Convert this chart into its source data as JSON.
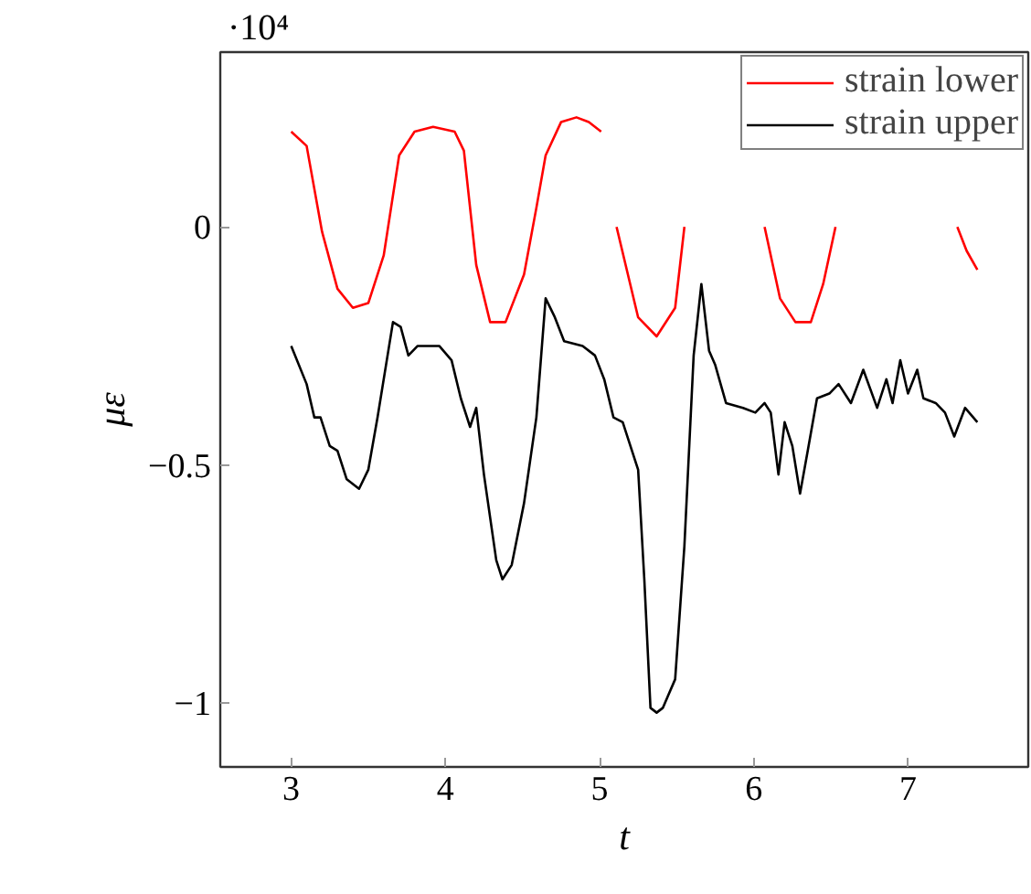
{
  "chart_data": {
    "type": "line",
    "xlabel": "t",
    "ylabel": "με",
    "annotations": [
      "·10⁴"
    ],
    "xlim": [
      2.54,
      7.78
    ],
    "ylim": [
      -1.134,
      0.367
    ],
    "xticks": [
      3,
      4,
      5,
      6,
      7
    ],
    "yticks": [
      -1,
      -0.5,
      0
    ],
    "grid": false,
    "legend": "top right",
    "marker": "none",
    "line_style": "solid",
    "series": [
      {
        "name": "strain lower",
        "color": "#ff0000",
        "x": [
          3.0,
          3.1,
          3.2,
          3.3,
          3.4,
          3.5,
          3.6,
          3.7,
          3.8,
          3.92,
          4.06,
          4.12,
          4.2,
          4.29,
          4.39,
          4.51,
          4.59,
          4.65,
          4.75,
          4.85,
          4.93,
          5.01,
          5.06,
          5.11,
          5.25,
          5.37,
          5.49,
          5.55,
          5.8,
          6.07,
          6.17,
          6.27,
          6.37,
          6.45,
          6.53,
          6.85,
          7.32,
          7.38,
          7.45
        ],
        "values": [
          0.2,
          0.17,
          -0.01,
          -0.13,
          -0.17,
          -0.16,
          -0.06,
          0.15,
          0.2,
          0.21,
          0.2,
          0.16,
          -0.08,
          -0.2,
          -0.2,
          -0.1,
          0.04,
          0.15,
          0.22,
          0.23,
          0.22,
          0.2,
          null,
          0,
          -0.19,
          -0.23,
          -0.17,
          0,
          null,
          0,
          -0.15,
          -0.2,
          -0.2,
          -0.12,
          0,
          null,
          0,
          -0.05,
          -0.09
        ]
      },
      {
        "name": "strain upper",
        "color": "#000000",
        "x": [
          3.0,
          3.1,
          3.15,
          3.19,
          3.25,
          3.3,
          3.36,
          3.44,
          3.5,
          3.56,
          3.66,
          3.71,
          3.76,
          3.82,
          3.96,
          4.04,
          4.1,
          4.16,
          4.2,
          4.25,
          4.33,
          4.37,
          4.43,
          4.51,
          4.59,
          4.65,
          4.71,
          4.77,
          4.89,
          4.97,
          5.03,
          5.09,
          5.15,
          5.21,
          5.25,
          5.29,
          5.33,
          5.37,
          5.41,
          5.49,
          5.55,
          5.61,
          5.66,
          5.71,
          5.75,
          5.82,
          5.93,
          6.01,
          6.07,
          6.11,
          6.16,
          6.2,
          6.25,
          6.3,
          6.35,
          6.41,
          6.49,
          6.55,
          6.63,
          6.71,
          6.8,
          6.86,
          6.9,
          6.95,
          7.0,
          7.06,
          7.1,
          7.18,
          7.24,
          7.3,
          7.37,
          7.45
        ],
        "values": [
          -0.25,
          -0.33,
          -0.4,
          -0.4,
          -0.46,
          -0.47,
          -0.53,
          -0.55,
          -0.51,
          -0.4,
          -0.2,
          -0.21,
          -0.27,
          -0.25,
          -0.25,
          -0.28,
          -0.36,
          -0.42,
          -0.38,
          -0.52,
          -0.7,
          -0.74,
          -0.71,
          -0.58,
          -0.4,
          -0.15,
          -0.19,
          -0.24,
          -0.25,
          -0.27,
          -0.32,
          -0.4,
          -0.41,
          -0.47,
          -0.51,
          -0.74,
          -1.01,
          -1.02,
          -1.01,
          -0.95,
          -0.67,
          -0.27,
          -0.12,
          -0.26,
          -0.29,
          -0.37,
          -0.38,
          -0.39,
          -0.37,
          -0.39,
          -0.52,
          -0.41,
          -0.46,
          -0.56,
          -0.47,
          -0.36,
          -0.35,
          -0.33,
          -0.37,
          -0.3,
          -0.38,
          -0.32,
          -0.37,
          -0.28,
          -0.35,
          -0.3,
          -0.36,
          -0.37,
          -0.39,
          -0.44,
          -0.38,
          -0.41
        ]
      }
    ]
  }
}
